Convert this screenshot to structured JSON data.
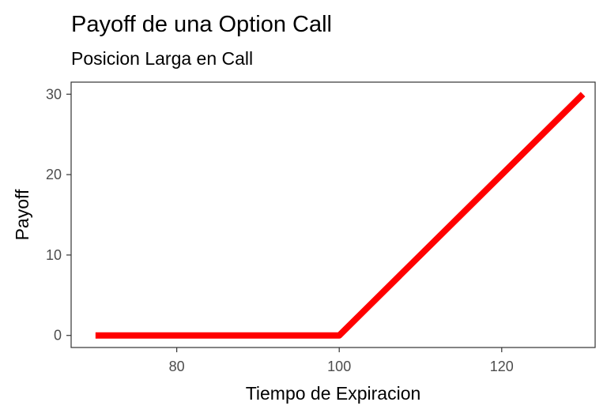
{
  "chart_data": {
    "type": "line",
    "title": "Payoff de una Option Call",
    "subtitle": "Posicion Larga en Call",
    "xlabel": "Tiempo de Expiracion",
    "ylabel": "Payoff",
    "xlim": [
      67,
      131.5
    ],
    "ylim": [
      -1.5,
      31.5
    ],
    "xticks": [
      80,
      100,
      120
    ],
    "yticks": [
      0,
      10,
      20,
      30
    ],
    "grid": false,
    "legend": "none",
    "series": [
      {
        "color": "#ff0000",
        "x": [
          70,
          100,
          130
        ],
        "y": [
          0,
          0,
          30
        ]
      }
    ]
  }
}
